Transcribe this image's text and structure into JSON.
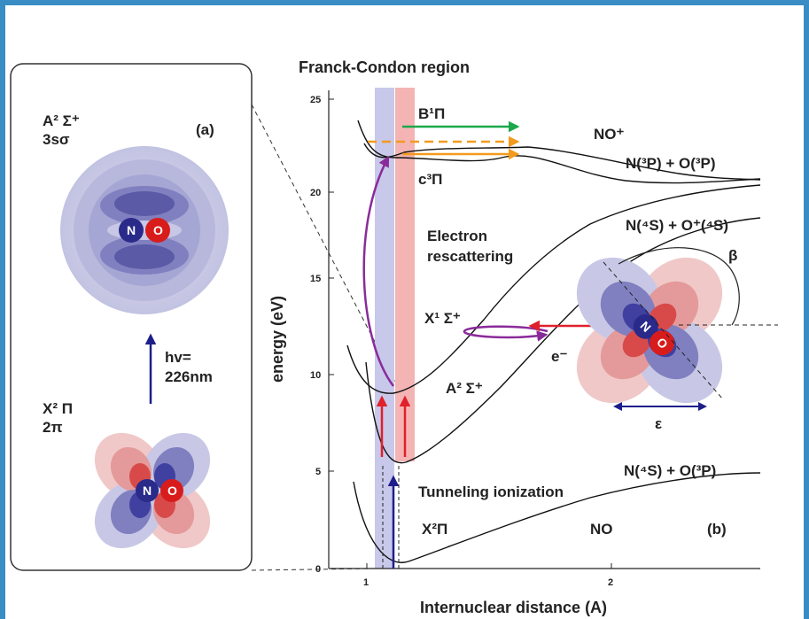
{
  "panel_a": {
    "label": "(a)",
    "upper_state": "A² Σ⁺",
    "upper_orbital": "3sσ",
    "lower_state": "X² Π",
    "lower_orbital": "2π",
    "transition": [
      "hv=",
      "226nm"
    ],
    "atom_n": "N",
    "atom_o": "O"
  },
  "panel_b": {
    "label": "(b)",
    "title": "Franck-Condon region",
    "xlabel": "Internuclear distance (A)",
    "ylabel": "energy (eV)",
    "y_ticks": [
      "0",
      "5",
      "10",
      "15",
      "20",
      "25"
    ],
    "x_ticks": [
      "1",
      "2"
    ],
    "states": {
      "b1pi": "B¹Π",
      "c3pi": "c³Π",
      "x1sigma": "X¹ Σ⁺",
      "a2sigma": "A² Σ⁺",
      "x2pi": "X²Π"
    },
    "species": {
      "no_plus": "NO⁺",
      "no": "NO",
      "n3p_o3p": "N(³P) + O(³P)",
      "n4s_oplus4s": "N(⁴S) + O⁺(⁴S)",
      "n4s_o3p": "N(⁴S) + O(³P)"
    },
    "annotations": {
      "rescattering": [
        "Electron",
        "rescattering"
      ],
      "tunneling": "Tunneling ionization",
      "electron": "e⁻",
      "beta": "β",
      "epsilon": "ε"
    },
    "atom_n": "N",
    "atom_o": "O"
  },
  "colors": {
    "border": "#3a8cc4",
    "green_arrow": "#1aa84a",
    "orange_arrow": "#f39a1e",
    "purple": "#8a2b9a",
    "red_arrow": "#e0202a",
    "navy_arrow": "#1e1e8a",
    "fc_blue": "#c8c8ea",
    "fc_red": "#f4b4b4"
  }
}
